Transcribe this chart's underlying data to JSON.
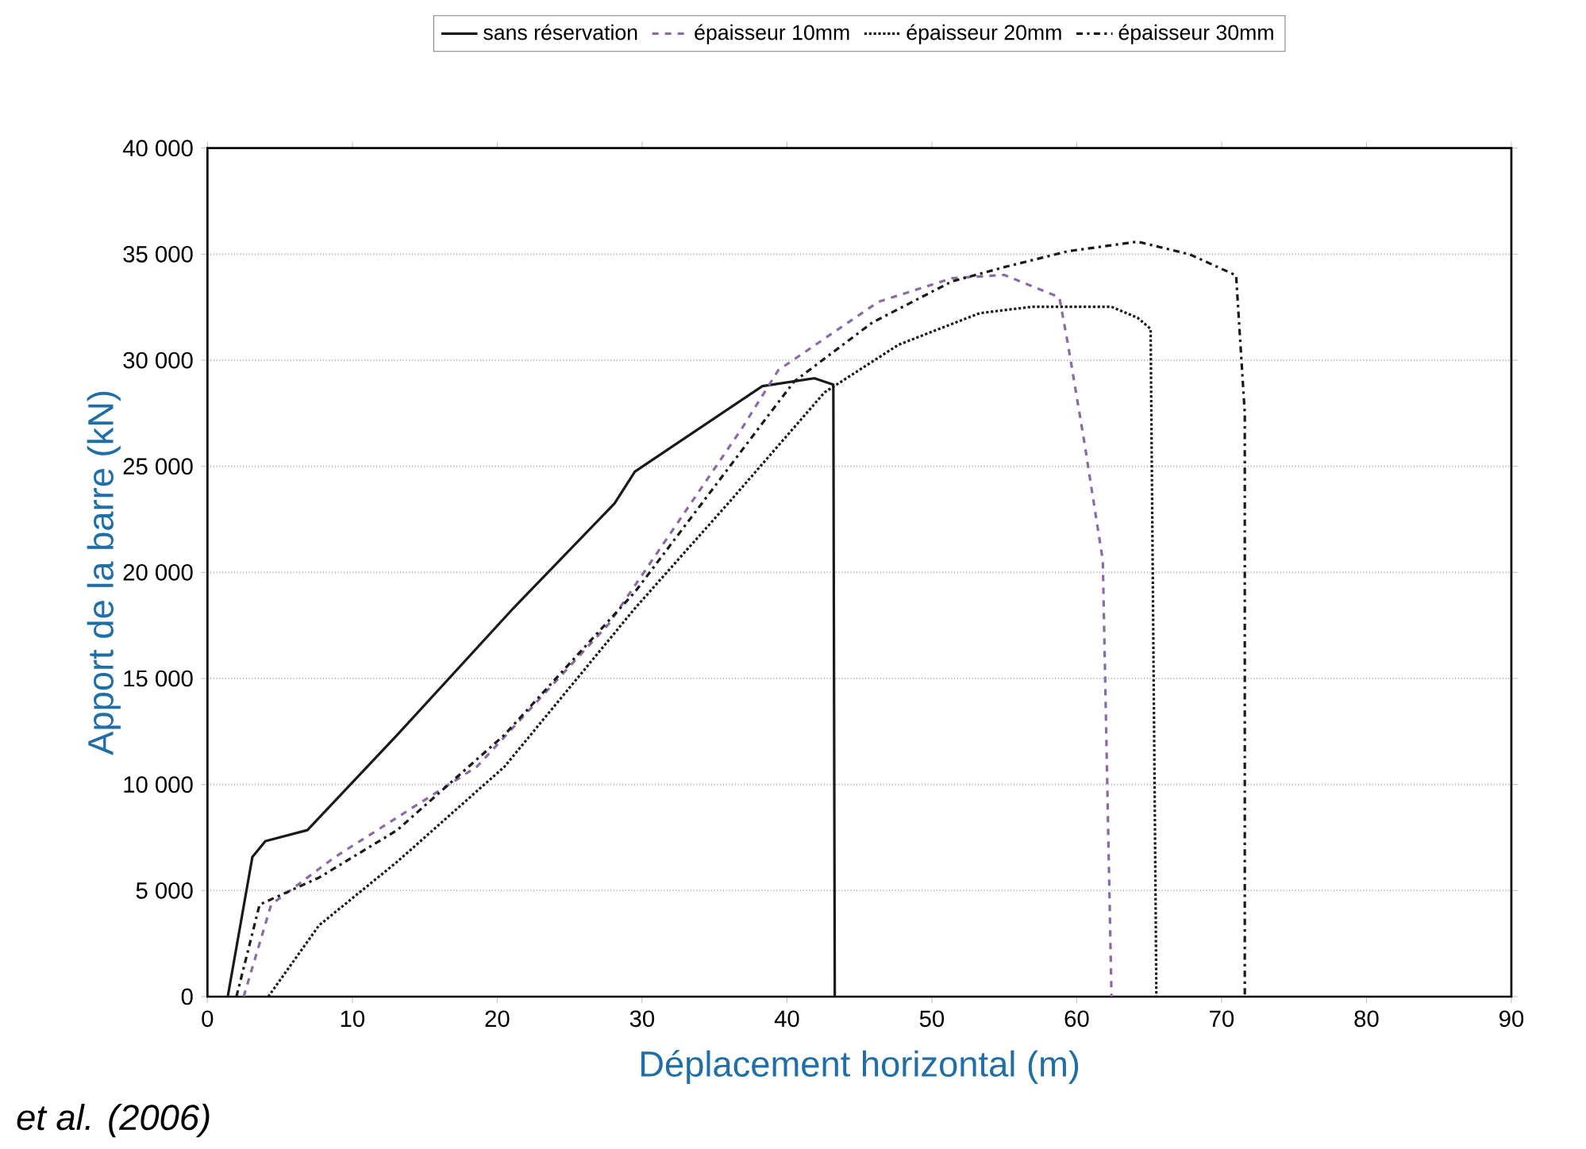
{
  "chart_data": {
    "type": "line",
    "xlabel": "Déplacement horizontal (m)",
    "ylabel": "Apport de la barre (kN)",
    "xlim": [
      0,
      90
    ],
    "xticks": [
      0,
      10,
      20,
      30,
      40,
      50,
      60,
      70,
      80,
      90
    ],
    "ylim": [
      0,
      40000
    ],
    "yticks": [
      0,
      {
        "value": 5000,
        "label": "5 000"
      },
      {
        "value": 10000,
        "label": "10 000"
      },
      {
        "value": 15000,
        "label": "15 000"
      },
      {
        "value": 20000,
        "label": "20 000"
      },
      {
        "value": 25000,
        "label": "25 000"
      },
      {
        "value": 30000,
        "label": "30 000"
      },
      {
        "value": 35000,
        "label": "35 000"
      },
      {
        "value": 40000,
        "label": "40 000"
      }
    ],
    "grid": "y",
    "legend": "top",
    "marker": "none",
    "annotations": [
      "et al. (2006)"
    ],
    "series": [
      {
        "name": "sans réservation",
        "color": "#1a1a1a",
        "line_style": "solid",
        "x": [
          1.4,
          3.1,
          4.0,
          6.9,
          13.1,
          21.1,
          28.1,
          29.5,
          38.3,
          41.9,
          43.2,
          43.3
        ],
        "values": [
          0,
          6580,
          7330,
          7850,
          12340,
          18300,
          23250,
          24750,
          28780,
          29150,
          28850,
          0
        ]
      },
      {
        "name": "épaisseur 10mm",
        "color": "#8a6aa8",
        "line_style": "dashed",
        "x": [
          2.5,
          4.4,
          8.8,
          18.6,
          27.7,
          36.9,
          39.4,
          46.3,
          51.4,
          55.0,
          58.8,
          59.4,
          60.5,
          61.8,
          62.4
        ],
        "values": [
          0,
          4340,
          6580,
          10840,
          17570,
          26800,
          29530,
          32750,
          33870,
          34020,
          32970,
          30730,
          26240,
          20560,
          0
        ]
      },
      {
        "name": "épaisseur 20mm",
        "color": "#1a1a1a",
        "line_style": "dotted",
        "x": [
          4.2,
          7.7,
          13.1,
          20.5,
          29.5,
          36.0,
          42.6,
          47.7,
          53.3,
          56.9,
          62.4,
          64.2,
          65.1,
          65.5
        ],
        "values": [
          0,
          3360,
          6360,
          10840,
          18300,
          23300,
          28490,
          30730,
          32220,
          32520,
          32520,
          32000,
          31480,
          0
        ]
      },
      {
        "name": "épaisseur 30mm",
        "color": "#1a1a1a",
        "line_style": "dashdot",
        "x": [
          2.0,
          3.6,
          7.7,
          13.1,
          20.5,
          29.5,
          38.6,
          40.5,
          45.9,
          51.4,
          55.0,
          59.4,
          64.2,
          67.8,
          71.0,
          71.6,
          71.6
        ],
        "values": [
          0,
          4340,
          5610,
          7850,
          12340,
          19070,
          27300,
          29000,
          31780,
          33720,
          34390,
          35140,
          35590,
          34990,
          34000,
          27500,
          0
        ]
      }
    ]
  }
}
